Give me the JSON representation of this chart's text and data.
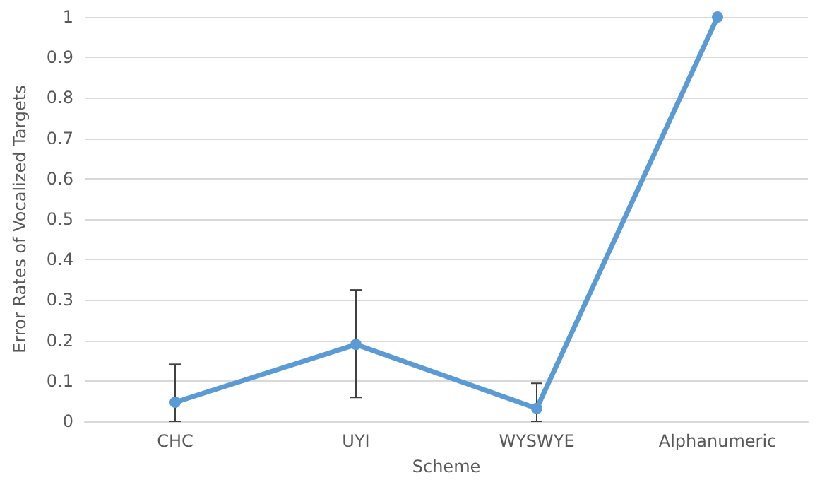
{
  "chart_data": {
    "type": "line",
    "xlabel": "Scheme",
    "ylabel": "Error Rates of Vocalized Targets",
    "categories": [
      "CHC",
      "UYI",
      "WYSWYE",
      "Alphanumeric"
    ],
    "series": [
      {
        "color": "#5b9bd5",
        "values": [
          0.047,
          0.19,
          0.032,
          1
        ],
        "errors": [
          [
            0,
            0.141
          ],
          [
            0.059,
            0.325
          ],
          [
            0,
            0.094
          ],
          null
        ]
      }
    ],
    "ylim": [
      0,
      1
    ],
    "yticks": [
      0,
      0.1,
      0.2,
      0.3,
      0.4,
      0.5,
      0.6,
      0.7,
      0.8,
      0.9,
      1
    ],
    "grid": "y",
    "marker": "circle",
    "line_style": "solid"
  }
}
